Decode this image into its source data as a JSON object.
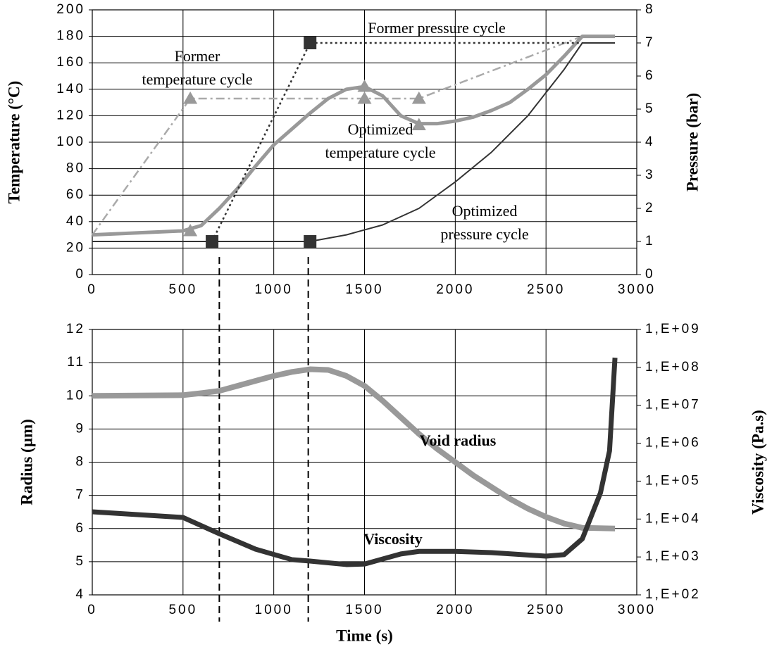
{
  "chart_data": [
    {
      "type": "line",
      "xlim": [
        0,
        3000
      ],
      "xticks": [
        0,
        500,
        1000,
        1500,
        2000,
        2500,
        3000
      ],
      "ylim": [
        0,
        200
      ],
      "yticks": [
        0,
        20,
        40,
        60,
        80,
        100,
        120,
        140,
        160,
        180,
        200
      ],
      "y2lim": [
        0,
        8
      ],
      "y2ticks": [
        0,
        1,
        2,
        3,
        4,
        5,
        6,
        7,
        8
      ],
      "ylabel": "Temperature (°C)",
      "y2label": "Pressure (bar)",
      "grid": true,
      "series": [
        {
          "x": [
            0,
            540,
            1800,
            2700,
            2880
          ],
          "values": [
            30,
            133,
            133,
            180,
            180
          ],
          "color": "#aaaaaa",
          "style": "dashdot",
          "width": 2.5
        },
        {
          "x": [
            0,
            500,
            600,
            700,
            800,
            900,
            1000,
            1100,
            1200,
            1300,
            1400,
            1500,
            1600,
            1700,
            1800,
            1900,
            2000,
            2100,
            2200,
            2300,
            2400,
            2500,
            2600,
            2700,
            2880
          ],
          "values": [
            30,
            33,
            37,
            50,
            65,
            82,
            98,
            110,
            122,
            133,
            140,
            142,
            135,
            120,
            114,
            114,
            116,
            119,
            124,
            130,
            140,
            151,
            165,
            180,
            180
          ],
          "color": "#999999",
          "style": "solid",
          "width": 5
        },
        {
          "x": [
            540,
            1500,
            1800
          ],
          "values": [
            133,
            133,
            133
          ],
          "color": "#999999",
          "style": "none",
          "marker": "triangle"
        },
        {
          "x": [
            540,
            1500,
            1800
          ],
          "values": [
            33,
            142,
            113
          ],
          "color": "#999999",
          "style": "none",
          "marker": "triangle"
        },
        {
          "x": [
            660,
            1200,
            2700
          ],
          "values": [
            1,
            7,
            7
          ],
          "axis": "y2",
          "color": "#333333",
          "style": "dotted",
          "width": 2.5
        },
        {
          "x": [
            0,
            1200,
            1400,
            1600,
            1800,
            2000,
            2200,
            2400,
            2600,
            2700,
            2880
          ],
          "values": [
            1,
            1,
            1.2,
            1.5,
            2,
            2.8,
            3.7,
            4.8,
            6.2,
            7,
            7
          ],
          "axis": "y2",
          "color": "#333333",
          "style": "solid",
          "width": 2
        },
        {
          "x": [
            660,
            1200,
            1200
          ],
          "values": [
            1,
            1,
            7
          ],
          "axis": "y2",
          "color": "#333333",
          "style": "none",
          "marker": "square"
        }
      ],
      "annotations": [
        [
          "Former pressure cycle"
        ],
        [
          "Former",
          "temperature cycle"
        ],
        [
          "Optimized",
          "temperature cycle"
        ],
        [
          "Optimized",
          "pressure cycle"
        ]
      ]
    },
    {
      "type": "line",
      "xlim": [
        0,
        3000
      ],
      "xticks": [
        0,
        500,
        1000,
        1500,
        2000,
        2500,
        3000
      ],
      "ylim": [
        4,
        12
      ],
      "yticks": [
        4,
        5,
        6,
        7,
        8,
        9,
        10,
        11,
        12
      ],
      "y2lim": [
        100,
        1000000000
      ],
      "y2scale": "log",
      "y2ticks": [
        {
          "value": 100,
          "label": "1,E+02"
        },
        {
          "value": 1000,
          "label": "1,E+03"
        },
        {
          "value": 10000,
          "label": "1,E+04"
        },
        {
          "value": 100000,
          "label": "1,E+05"
        },
        {
          "value": 1000000,
          "label": "1,E+06"
        },
        {
          "value": 10000000,
          "label": "1,E+07"
        },
        {
          "value": 100000000,
          "label": "1,E+08"
        },
        {
          "value": 1000000000,
          "label": "1,E+09"
        }
      ],
      "xlabel": "Time (s)",
      "ylabel": "Radius (µm)",
      "y2label": "Viscosity (Pa.s)",
      "grid": true,
      "vlines": [
        700,
        1190
      ],
      "series": [
        {
          "x": [
            0,
            500,
            600,
            700,
            800,
            900,
            1000,
            1100,
            1200,
            1300,
            1400,
            1500,
            1600,
            1700,
            1800,
            1900,
            2000,
            2100,
            2200,
            2300,
            2400,
            2500,
            2600,
            2700,
            2880
          ],
          "values": [
            10,
            10.02,
            10.08,
            10.15,
            10.3,
            10.45,
            10.6,
            10.72,
            10.8,
            10.78,
            10.6,
            10.3,
            9.85,
            9.35,
            8.85,
            8.4,
            8,
            7.6,
            7.25,
            6.9,
            6.6,
            6.35,
            6.15,
            6.02,
            6
          ],
          "color": "#999999",
          "style": "solid",
          "width": 8
        },
        {
          "x": [
            0,
            500,
            700,
            900,
            1100,
            1200,
            1400,
            1500,
            1700,
            1800,
            2000,
            2200,
            2500,
            2600,
            2700,
            2800,
            2850,
            2880
          ],
          "values": [
            15500,
            11000,
            4100,
            1600,
            850,
            780,
            630,
            650,
            1200,
            1400,
            1400,
            1300,
            1050,
            1150,
            3000,
            49000,
            630000,
            180000000
          ],
          "axis": "y2",
          "color": "#333333",
          "style": "solid",
          "width": 7
        }
      ],
      "annotations": [
        [
          "Void radius"
        ],
        [
          "Viscosity"
        ]
      ]
    }
  ]
}
